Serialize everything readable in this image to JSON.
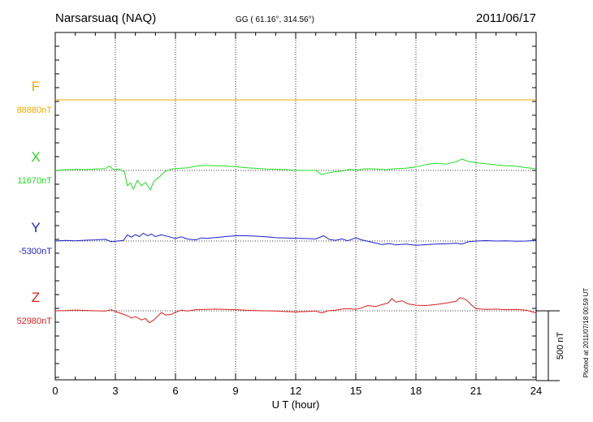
{
  "header": {
    "station": "Narsarsuaq (NAQ)",
    "coords": "GG ( 61.16°, 314.56°)",
    "date": "2011/06/17"
  },
  "side_note": "Plotted at 2011/07/18 00:59 UT",
  "chart_data": {
    "type": "line",
    "xlabel": "U T (hour)",
    "xlim": [
      0,
      24
    ],
    "x_ticks": [
      0,
      3,
      6,
      9,
      12,
      15,
      18,
      21,
      24
    ],
    "x_tick_labels": [
      "0",
      "3",
      "6",
      "9",
      "12",
      "15",
      "18",
      "21",
      "24"
    ],
    "scale_bar": {
      "value_nT": 500,
      "label": "500 nT"
    },
    "grid": true,
    "series": [
      {
        "name": "F",
        "baseline_label": "88880nT",
        "baseline": 88880,
        "color": "#f5a800",
        "points": [
          [
            0,
            88880
          ],
          [
            24,
            88880
          ]
        ]
      },
      {
        "name": "X",
        "baseline_label": "11670nT",
        "baseline": 11670,
        "color": "#22dd22",
        "points": [
          [
            0,
            11670
          ],
          [
            0.5,
            11674
          ],
          [
            1,
            11678
          ],
          [
            1.5,
            11676
          ],
          [
            2,
            11680
          ],
          [
            2.5,
            11682
          ],
          [
            2.7,
            11702
          ],
          [
            2.9,
            11676
          ],
          [
            3.2,
            11680
          ],
          [
            3.45,
            11660
          ],
          [
            3.6,
            11560
          ],
          [
            3.75,
            11580
          ],
          [
            3.9,
            11535
          ],
          [
            4.1,
            11600
          ],
          [
            4.3,
            11560
          ],
          [
            4.5,
            11585
          ],
          [
            4.75,
            11530
          ],
          [
            4.9,
            11588
          ],
          [
            5.2,
            11625
          ],
          [
            5.5,
            11665
          ],
          [
            5.8,
            11680
          ],
          [
            6.2,
            11685
          ],
          [
            6.6,
            11688
          ],
          [
            7.0,
            11700
          ],
          [
            7.5,
            11706
          ],
          [
            8.0,
            11704
          ],
          [
            8.5,
            11702
          ],
          [
            9,
            11697
          ],
          [
            9.5,
            11690
          ],
          [
            10,
            11685
          ],
          [
            10.5,
            11680
          ],
          [
            11,
            11678
          ],
          [
            11.5,
            11676
          ],
          [
            12,
            11672
          ],
          [
            12.5,
            11670
          ],
          [
            13,
            11670
          ],
          [
            13.3,
            11640
          ],
          [
            13.6,
            11652
          ],
          [
            14,
            11662
          ],
          [
            14.3,
            11665
          ],
          [
            14.7,
            11678
          ],
          [
            15,
            11672
          ],
          [
            15.5,
            11682
          ],
          [
            16,
            11680
          ],
          [
            16.5,
            11676
          ],
          [
            17,
            11682
          ],
          [
            17.5,
            11686
          ],
          [
            18,
            11695
          ],
          [
            18.5,
            11712
          ],
          [
            19,
            11722
          ],
          [
            19.5,
            11715
          ],
          [
            20,
            11732
          ],
          [
            20.3,
            11752
          ],
          [
            20.6,
            11735
          ],
          [
            21,
            11725
          ],
          [
            21.5,
            11718
          ],
          [
            22,
            11710
          ],
          [
            22.5,
            11704
          ],
          [
            23,
            11700
          ],
          [
            23.5,
            11690
          ],
          [
            24,
            11682
          ]
        ]
      },
      {
        "name": "Y",
        "baseline_label": "-5300nT",
        "baseline": -5300,
        "color": "#1f1fcc",
        "points": [
          [
            0,
            -5300
          ],
          [
            0.5,
            -5296
          ],
          [
            1,
            -5298
          ],
          [
            1.5,
            -5294
          ],
          [
            2,
            -5292
          ],
          [
            2.5,
            -5288
          ],
          [
            2.8,
            -5305
          ],
          [
            3.1,
            -5300
          ],
          [
            3.4,
            -5296
          ],
          [
            3.6,
            -5256
          ],
          [
            3.8,
            -5272
          ],
          [
            4.0,
            -5254
          ],
          [
            4.2,
            -5268
          ],
          [
            4.4,
            -5244
          ],
          [
            4.6,
            -5262
          ],
          [
            4.8,
            -5250
          ],
          [
            5.0,
            -5268
          ],
          [
            5.3,
            -5256
          ],
          [
            5.6,
            -5266
          ],
          [
            6.0,
            -5282
          ],
          [
            6.3,
            -5270
          ],
          [
            6.6,
            -5286
          ],
          [
            7.0,
            -5292
          ],
          [
            7.3,
            -5278
          ],
          [
            7.6,
            -5280
          ],
          [
            8.0,
            -5275
          ],
          [
            8.5,
            -5268
          ],
          [
            9.0,
            -5262
          ],
          [
            9.5,
            -5262
          ],
          [
            10.0,
            -5265
          ],
          [
            10.5,
            -5270
          ],
          [
            11,
            -5276
          ],
          [
            11.5,
            -5278
          ],
          [
            12,
            -5280
          ],
          [
            12.5,
            -5282
          ],
          [
            13,
            -5285
          ],
          [
            13.4,
            -5262
          ],
          [
            13.7,
            -5290
          ],
          [
            14,
            -5295
          ],
          [
            14.3,
            -5285
          ],
          [
            14.6,
            -5298
          ],
          [
            15.0,
            -5277
          ],
          [
            15.3,
            -5292
          ],
          [
            15.7,
            -5305
          ],
          [
            16.0,
            -5315
          ],
          [
            16.3,
            -5325
          ],
          [
            16.7,
            -5318
          ],
          [
            17,
            -5328
          ],
          [
            17.5,
            -5322
          ],
          [
            18,
            -5330
          ],
          [
            18.5,
            -5326
          ],
          [
            19,
            -5322
          ],
          [
            19.5,
            -5320
          ],
          [
            20,
            -5316
          ],
          [
            20.3,
            -5322
          ],
          [
            20.6,
            -5306
          ],
          [
            21,
            -5300
          ],
          [
            21.5,
            -5297
          ],
          [
            22,
            -5300
          ],
          [
            22.5,
            -5298
          ],
          [
            23,
            -5302
          ],
          [
            23.5,
            -5300
          ],
          [
            24,
            -5296
          ]
        ]
      },
      {
        "name": "Z",
        "baseline_label": "52980nT",
        "baseline": 52980,
        "color": "#dd1e1e",
        "points": [
          [
            0,
            52980
          ],
          [
            0.5,
            52982
          ],
          [
            1,
            52985
          ],
          [
            1.5,
            52983
          ],
          [
            2,
            52980
          ],
          [
            2.5,
            52978
          ],
          [
            2.8,
            52988
          ],
          [
            3.0,
            52975
          ],
          [
            3.3,
            52960
          ],
          [
            3.6,
            52945
          ],
          [
            3.8,
            52928
          ],
          [
            4.0,
            52938
          ],
          [
            4.3,
            52915
          ],
          [
            4.5,
            52925
          ],
          [
            4.7,
            52895
          ],
          [
            4.9,
            52912
          ],
          [
            5.1,
            52940
          ],
          [
            5.3,
            52968
          ],
          [
            5.5,
            52950
          ],
          [
            5.8,
            52955
          ],
          [
            6.0,
            52970
          ],
          [
            6.3,
            52985
          ],
          [
            6.6,
            52978
          ],
          [
            7.0,
            52988
          ],
          [
            7.5,
            52990
          ],
          [
            8,
            52992
          ],
          [
            8.5,
            52990
          ],
          [
            9,
            52988
          ],
          [
            9.5,
            52984
          ],
          [
            10,
            52982
          ],
          [
            10.5,
            52980
          ],
          [
            11,
            52978
          ],
          [
            11.5,
            52975
          ],
          [
            12,
            52972
          ],
          [
            12.5,
            52975
          ],
          [
            13,
            52978
          ],
          [
            13.3,
            52965
          ],
          [
            13.6,
            52980
          ],
          [
            14,
            52985
          ],
          [
            14.3,
            52992
          ],
          [
            14.6,
            52996
          ],
          [
            15,
            52990
          ],
          [
            15.3,
            53002
          ],
          [
            15.6,
            53018
          ],
          [
            16,
            53010
          ],
          [
            16.3,
            53024
          ],
          [
            16.6,
            53035
          ],
          [
            16.8,
            53068
          ],
          [
            17.0,
            53042
          ],
          [
            17.3,
            53052
          ],
          [
            17.6,
            53030
          ],
          [
            18,
            53020
          ],
          [
            18.5,
            53018
          ],
          [
            19,
            53025
          ],
          [
            19.5,
            53035
          ],
          [
            20,
            53048
          ],
          [
            20.2,
            53075
          ],
          [
            20.5,
            53060
          ],
          [
            20.8,
            53018
          ],
          [
            21,
            52995
          ],
          [
            21.5,
            52990
          ],
          [
            22,
            52992
          ],
          [
            22.5,
            52988
          ],
          [
            23,
            52990
          ],
          [
            23.5,
            52985
          ],
          [
            24,
            52965
          ]
        ]
      }
    ]
  }
}
